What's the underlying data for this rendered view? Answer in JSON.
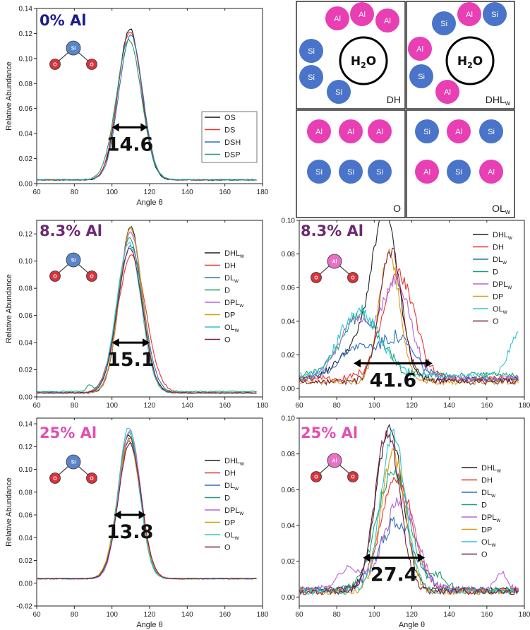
{
  "colors": {
    "DHLw": "#222222",
    "DH": "#e8332f",
    "DLw": "#2f6fc0",
    "D": "#1f9e73",
    "DPLw": "#b864d8",
    "DP": "#d99a0d",
    "OLw": "#2cc6cf",
    "O": "#7a1f3d",
    "OS": "#111111",
    "DS": "#e8332f",
    "DSH": "#2f6fc0",
    "DSP": "#1f9e73",
    "si": "#4a74c9",
    "al": "#e83fb4",
    "oxy": "#d8333c",
    "title0": "#1b1b8e",
    "title8": "#6b2a72",
    "title25": "#e24fb0"
  },
  "schematic": {
    "water_label": "H2O",
    "si_label": "Si",
    "al_label": "Al",
    "boxes": [
      {
        "name": "DH",
        "label_main": "DH",
        "label_sub": ""
      },
      {
        "name": "DHLw",
        "label_main": "DHL",
        "label_sub": "w"
      },
      {
        "name": "O",
        "label_main": "O",
        "label_sub": ""
      },
      {
        "name": "OLw",
        "label_main": "OL",
        "label_sub": "w"
      }
    ]
  },
  "chart_data": [
    {
      "id": "p1",
      "type": "line",
      "title": "0% Al",
      "center_atom": "Si",
      "xlabel": "Angle θ",
      "ylabel": "Relative Abundance",
      "xlim": [
        60,
        180
      ],
      "ylim": [
        0,
        0.14
      ],
      "xticks": [
        "60",
        "80",
        "100",
        "120",
        "140",
        "160",
        "180"
      ],
      "yticks": [
        "0.00",
        "0.02",
        "0.04",
        "0.06",
        "0.08",
        "0.10",
        "0.12",
        "0.14"
      ],
      "width_annotation": "14.6",
      "width_range": [
        100,
        119
      ],
      "width_y": 0.045,
      "series": [
        {
          "name": "OS",
          "key": "OS",
          "peak": 0.121,
          "center": 109.5,
          "sigma": 6.2,
          "baseline": 0.003
        },
        {
          "name": "DS",
          "key": "DS",
          "peak": 0.118,
          "center": 109.5,
          "sigma": 6.4,
          "baseline": 0.003
        },
        {
          "name": "DSH",
          "key": "DSH",
          "peak": 0.116,
          "center": 110.0,
          "sigma": 6.3,
          "baseline": 0.003
        },
        {
          "name": "DSP",
          "key": "DSP",
          "peak": 0.112,
          "center": 109.0,
          "sigma": 6.6,
          "baseline": 0.003
        }
      ]
    },
    {
      "id": "p2",
      "type": "line",
      "title": "8.3% Al",
      "center_atom": "Si",
      "xlabel": "",
      "ylabel": "Relative Abundance",
      "xlim": [
        60,
        180
      ],
      "ylim": [
        0,
        0.13
      ],
      "xticks": [
        "60",
        "80",
        "100",
        "120",
        "140",
        "160",
        "180"
      ],
      "yticks": [
        "0.00",
        "0.02",
        "0.04",
        "0.06",
        "0.08",
        "0.10",
        "0.12"
      ],
      "width_annotation": "15.1",
      "width_range": [
        100,
        120
      ],
      "width_y": 0.04,
      "series": [
        {
          "name": "DHLw",
          "key": "DHLw",
          "peak": 0.122,
          "center": 110.0,
          "sigma": 6.0,
          "baseline": 0.003
        },
        {
          "name": "DH",
          "key": "DH",
          "peak": 0.101,
          "center": 110.5,
          "sigma": 7.5,
          "baseline": 0.003
        },
        {
          "name": "DLw",
          "key": "DLw",
          "peak": 0.108,
          "center": 110.0,
          "sigma": 6.8,
          "baseline": 0.003
        },
        {
          "name": "D",
          "key": "D",
          "peak": 0.113,
          "center": 109.5,
          "sigma": 6.4,
          "baseline": 0.004,
          "extra": [
            88,
            0.005,
            1.5
          ]
        },
        {
          "name": "DPLw",
          "key": "DPLw",
          "peak": 0.118,
          "center": 110.0,
          "sigma": 6.2,
          "baseline": 0.003
        },
        {
          "name": "DP",
          "key": "DP",
          "peak": 0.121,
          "center": 110.0,
          "sigma": 6.1,
          "baseline": 0.003
        },
        {
          "name": "OLw",
          "key": "OLw",
          "peak": 0.11,
          "center": 109.0,
          "sigma": 6.5,
          "baseline": 0.003
        },
        {
          "name": "O",
          "key": "O",
          "peak": 0.106,
          "center": 109.5,
          "sigma": 6.6,
          "baseline": 0.003
        }
      ]
    },
    {
      "id": "p3",
      "type": "line",
      "title": "8.3% Al",
      "center_atom": "Al",
      "xlabel": "",
      "ylabel": "",
      "xlim": [
        60,
        180
      ],
      "ylim": [
        -0.005,
        0.1
      ],
      "xticks": [
        "60",
        "80",
        "100",
        "120",
        "140",
        "160",
        "180"
      ],
      "yticks": [
        "0.00",
        "0.02",
        "0.04",
        "0.06",
        "0.08",
        "0.10"
      ],
      "width_annotation": "41.6",
      "width_range": [
        89,
        131
      ],
      "width_y": 0.015,
      "series": [
        {
          "name": "DHLw",
          "key": "DHLw",
          "peak": 0.09,
          "center": 106.0,
          "sigma": 7.0,
          "baseline": 0.005,
          "shoulder": [
            92,
            0.02,
            5
          ]
        },
        {
          "name": "DH",
          "key": "DH",
          "peak": 0.062,
          "center": 113.0,
          "sigma": 8.5,
          "baseline": 0.006
        },
        {
          "name": "DLw",
          "key": "DLw",
          "peak": 0.024,
          "center": 112.0,
          "sigma": 9.0,
          "baseline": 0.006,
          "shoulder": [
            90,
            0.018,
            4
          ]
        },
        {
          "name": "D",
          "key": "D",
          "peak": 0.022,
          "center": 98.0,
          "sigma": 9.0,
          "baseline": 0.008,
          "shoulder": [
            88,
            0.02,
            4
          ]
        },
        {
          "name": "DPLw",
          "key": "DPLw",
          "peak": 0.057,
          "center": 112.0,
          "sigma": 7.5,
          "baseline": 0.006,
          "shoulder": [
            90,
            0.035,
            4
          ]
        },
        {
          "name": "DP",
          "key": "DP",
          "peak": 0.076,
          "center": 108.0,
          "sigma": 5.5,
          "baseline": 0.004
        },
        {
          "name": "OLw",
          "key": "OLw",
          "peak": 0.022,
          "center": 96.0,
          "sigma": 10.0,
          "baseline": 0.008,
          "shoulder": [
            88,
            0.02,
            4
          ],
          "tail": [
            177,
            0.025,
            5
          ]
        },
        {
          "name": "O",
          "key": "O",
          "peak": 0.078,
          "center": 109.0,
          "sigma": 6.0,
          "baseline": 0.004
        }
      ]
    },
    {
      "id": "p4",
      "type": "line",
      "title": "25% Al",
      "center_atom": "Si",
      "xlabel": "Angle θ",
      "ylabel": "Relative Abundance",
      "xlim": [
        60,
        180
      ],
      "ylim": [
        -0.02,
        0.145
      ],
      "xticks": [
        "60",
        "80",
        "100",
        "120",
        "140",
        "160",
        "180"
      ],
      "yticks": [
        "-0.02",
        "0.00",
        "0.02",
        "0.04",
        "0.06",
        "0.08",
        "0.10",
        "0.12",
        "0.14"
      ],
      "width_annotation": "13.8",
      "width_range": [
        101,
        118
      ],
      "width_y": 0.06,
      "series": [
        {
          "name": "DHLw",
          "key": "DHLw",
          "peak": 0.126,
          "center": 109.0,
          "sigma": 5.8,
          "baseline": 0.004
        },
        {
          "name": "DH",
          "key": "DH",
          "peak": 0.124,
          "center": 109.5,
          "sigma": 5.9,
          "baseline": 0.004
        },
        {
          "name": "DLw",
          "key": "DLw",
          "peak": 0.121,
          "center": 109.0,
          "sigma": 6.0,
          "baseline": 0.004
        },
        {
          "name": "D",
          "key": "D",
          "peak": 0.128,
          "center": 109.0,
          "sigma": 5.8,
          "baseline": 0.004
        },
        {
          "name": "DPLw",
          "key": "DPLw",
          "peak": 0.13,
          "center": 109.5,
          "sigma": 5.7,
          "baseline": 0.004
        },
        {
          "name": "DP",
          "key": "DP",
          "peak": 0.122,
          "center": 109.0,
          "sigma": 6.0,
          "baseline": 0.004
        },
        {
          "name": "OLw",
          "key": "OLw",
          "peak": 0.133,
          "center": 109.0,
          "sigma": 5.6,
          "baseline": 0.004
        },
        {
          "name": "O",
          "key": "O",
          "peak": 0.119,
          "center": 109.5,
          "sigma": 6.0,
          "baseline": 0.004
        }
      ]
    },
    {
      "id": "p5",
      "type": "line",
      "title": "25% Al",
      "center_atom": "Al",
      "xlabel": "Angle θ",
      "ylabel": "",
      "xlim": [
        60,
        180
      ],
      "ylim": [
        -0.005,
        0.1
      ],
      "xticks": [
        "60",
        "80",
        "100",
        "120",
        "140",
        "160",
        "180"
      ],
      "yticks": [
        "0.00",
        "0.02",
        "0.04",
        "0.06",
        "0.08",
        "0.10"
      ],
      "width_annotation": "27.4",
      "width_range": [
        94,
        127
      ],
      "width_y": 0.022,
      "series": [
        {
          "name": "DHLw",
          "key": "DHLw",
          "peak": 0.09,
          "center": 108.0,
          "sigma": 7.0,
          "baseline": 0.004
        },
        {
          "name": "DH",
          "key": "DH",
          "peak": 0.062,
          "center": 112.0,
          "sigma": 8.5,
          "baseline": 0.004
        },
        {
          "name": "DLw",
          "key": "DLw",
          "peak": 0.038,
          "center": 112.0,
          "sigma": 9.5,
          "baseline": 0.004
        },
        {
          "name": "D",
          "key": "D",
          "peak": 0.066,
          "center": 110.0,
          "sigma": 8.5,
          "baseline": 0.004,
          "tail": [
            135,
            0.008,
            4
          ]
        },
        {
          "name": "DPLw",
          "key": "DPLw",
          "peak": 0.05,
          "center": 114.0,
          "sigma": 8.5,
          "baseline": 0.004,
          "shoulder": [
            87,
            0.012,
            3
          ],
          "tail": [
            168,
            0.01,
            3
          ]
        },
        {
          "name": "DP",
          "key": "DP",
          "peak": 0.076,
          "center": 110.0,
          "sigma": 6.5,
          "baseline": 0.003
        },
        {
          "name": "OLw",
          "key": "OLw",
          "peak": 0.088,
          "center": 110.0,
          "sigma": 6.5,
          "baseline": 0.003
        },
        {
          "name": "O",
          "key": "O",
          "peak": 0.09,
          "center": 107.0,
          "sigma": 6.5,
          "baseline": 0.003
        }
      ]
    }
  ]
}
